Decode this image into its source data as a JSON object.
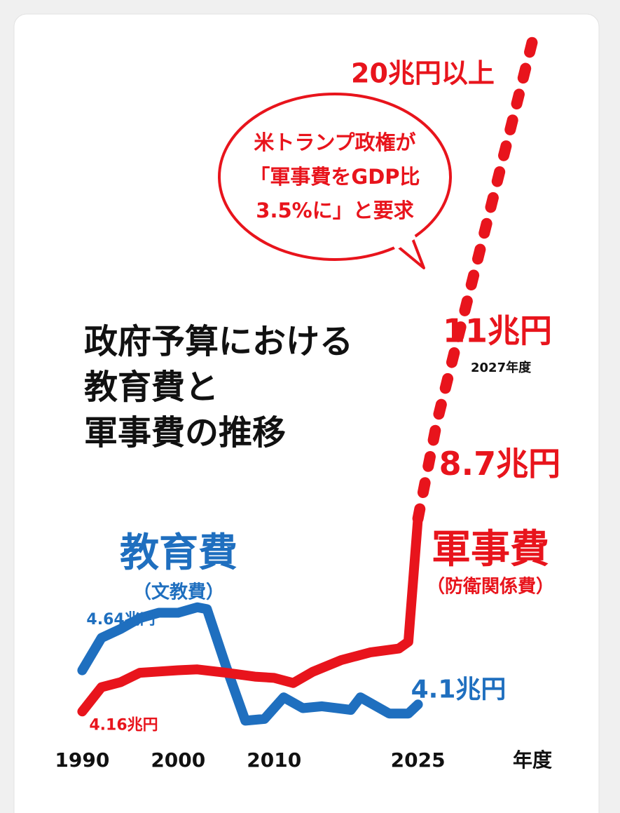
{
  "chart_data": {
    "type": "line",
    "title": [
      "政府予算における",
      "教育費と",
      "軍事費の推移"
    ],
    "x_label": "年度",
    "xlim": [
      1988,
      2040
    ],
    "xticks": [
      1990,
      2000,
      2010,
      2025
    ],
    "ylim": [
      3.9,
      20
    ],
    "y2lim": [
      4.0,
      7.8
    ],
    "annotations": {
      "callout": [
        "米トランプ政権が",
        "「軍事費をGDP比",
        "3.5%に」と要求"
      ],
      "year_note": "2027年度"
    },
    "series": [
      {
        "name": "教育費",
        "note": "（文教費）",
        "color": "#1f6fbf",
        "axis": "y2",
        "style": "solid",
        "x": [
          1990,
          1992,
          1994,
          1996,
          1998,
          2000,
          2002,
          2003,
          2005,
          2007,
          2009,
          2011,
          2013,
          2015,
          2018,
          2019,
          2022,
          2024,
          2025
        ],
        "values": [
          4.29,
          4.47,
          4.52,
          4.58,
          4.61,
          4.61,
          4.64,
          4.63,
          4.31,
          4.01,
          4.02,
          4.14,
          4.08,
          4.09,
          4.07,
          4.14,
          4.05,
          4.05,
          4.1
        ],
        "value_labels": [
          null,
          null,
          null,
          null,
          null,
          null,
          "4.64兆円",
          null,
          null,
          null,
          null,
          null,
          null,
          null,
          null,
          null,
          null,
          null,
          "4.1兆円"
        ]
      },
      {
        "name": "軍事費",
        "note": "（防衛関係費）",
        "color": "#e8141c",
        "style": "solid",
        "x": [
          1990,
          1992,
          1994,
          1996,
          1998,
          2000,
          2002,
          2005,
          2008,
          2010,
          2012,
          2014,
          2017,
          2020,
          2023,
          2024,
          2025
        ],
        "values": [
          4.16,
          4.73,
          4.85,
          5.07,
          5.1,
          5.13,
          5.15,
          5.07,
          4.98,
          4.95,
          4.83,
          5.09,
          5.37,
          5.55,
          5.64,
          5.8,
          8.7
        ],
        "value_labels": [
          "4.16兆円",
          null,
          null,
          null,
          null,
          null,
          null,
          null,
          null,
          null,
          null,
          null,
          null,
          null,
          null,
          null,
          "8.7兆円"
        ]
      },
      {
        "color": "#e8141c",
        "style": "dashed",
        "x": [
          2025,
          2027,
          2037
        ],
        "values": [
          8.7,
          11,
          20
        ],
        "value_labels": [
          null,
          "11兆円",
          "20兆円以上"
        ]
      }
    ]
  }
}
